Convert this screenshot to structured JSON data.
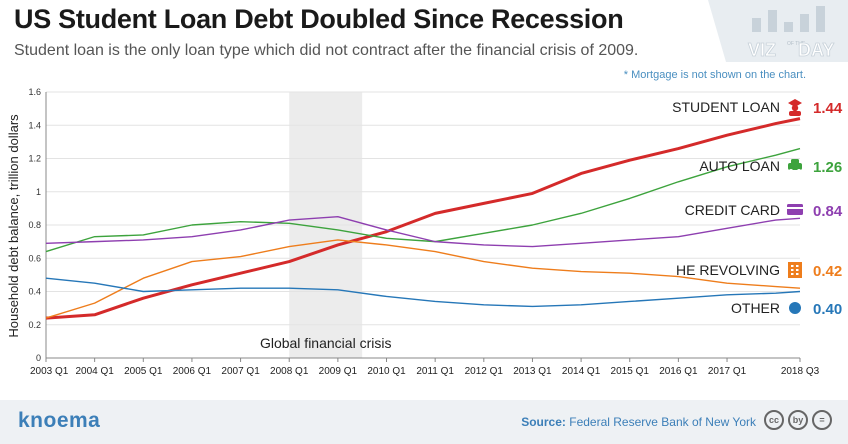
{
  "header": {
    "title": "US Student Loan Debt Doubled Since Recession",
    "subtitle": "Student loan is the only loan type which did not contract after the financial crisis of 2009.",
    "note": "* Mortgage is not shown on the chart.",
    "logo_word1": "VIZ",
    "logo_of_the": "OF THE",
    "logo_word2": "DAY"
  },
  "footer": {
    "brand": "knoema",
    "source_label": "Source:",
    "source_text": "Federal Reserve Bank of New York",
    "license_icons": [
      "cc",
      "by",
      "="
    ]
  },
  "chart_data": {
    "type": "line",
    "ylabel": "Household debt balance, trillion dollars",
    "ylim": [
      0,
      1.6
    ],
    "yticks": [
      "0",
      "0.2",
      "0.4",
      "0.6",
      "0.8",
      "1",
      "1.2",
      "1.4",
      "1.6"
    ],
    "x": [
      "2003 Q1",
      "2004 Q1",
      "2005 Q1",
      "2006 Q1",
      "2007 Q1",
      "2008 Q1",
      "2009 Q1",
      "2010 Q1",
      "2011 Q1",
      "2012 Q1",
      "2013 Q1",
      "2014 Q1",
      "2015 Q1",
      "2016 Q1",
      "2017 Q1",
      "2018 Q1",
      "2018 Q3"
    ],
    "xticks": [
      "2003 Q1",
      "2004 Q1",
      "2005 Q1",
      "2006 Q1",
      "2007 Q1",
      "2008 Q1",
      "2009 Q1",
      "2010 Q1",
      "2011 Q1",
      "2012 Q1",
      "2013 Q1",
      "2014 Q1",
      "2015 Q1",
      "2016 Q1",
      "2017 Q1",
      "2018 Q3"
    ],
    "shaded_region": {
      "label": "Global financial crisis",
      "from": "2008 Q1",
      "to": "2009 Q3"
    },
    "series": [
      {
        "name": "STUDENT LOAN",
        "end_label": "1.44",
        "color": "#d42a2a",
        "icon": "graduate-icon",
        "values": [
          0.24,
          0.26,
          0.36,
          0.44,
          0.51,
          0.58,
          0.68,
          0.76,
          0.87,
          0.93,
          0.99,
          1.11,
          1.19,
          1.26,
          1.34,
          1.41,
          1.44
        ]
      },
      {
        "name": "AUTO LOAN",
        "end_label": "1.26",
        "color": "#3da33d",
        "icon": "car-icon",
        "values": [
          0.64,
          0.73,
          0.74,
          0.8,
          0.82,
          0.81,
          0.77,
          0.72,
          0.7,
          0.75,
          0.8,
          0.87,
          0.96,
          1.06,
          1.15,
          1.22,
          1.26
        ]
      },
      {
        "name": "CREDIT CARD",
        "end_label": "0.84",
        "color": "#8e3fb0",
        "icon": "credit-card-icon",
        "values": [
          0.69,
          0.7,
          0.71,
          0.73,
          0.77,
          0.83,
          0.85,
          0.77,
          0.7,
          0.68,
          0.67,
          0.69,
          0.71,
          0.73,
          0.78,
          0.83,
          0.84
        ]
      },
      {
        "name": "HE REVOLVING",
        "end_label": "0.42",
        "color": "#ee7d1c",
        "icon": "building-icon",
        "values": [
          0.24,
          0.33,
          0.48,
          0.58,
          0.61,
          0.67,
          0.71,
          0.68,
          0.64,
          0.58,
          0.54,
          0.52,
          0.51,
          0.49,
          0.45,
          0.43,
          0.42
        ]
      },
      {
        "name": "OTHER",
        "end_label": "0.40",
        "color": "#2677b8",
        "icon": "dot-icon",
        "values": [
          0.48,
          0.45,
          0.4,
          0.41,
          0.42,
          0.42,
          0.41,
          0.37,
          0.34,
          0.32,
          0.31,
          0.32,
          0.34,
          0.36,
          0.38,
          0.39,
          0.4
        ]
      }
    ]
  }
}
